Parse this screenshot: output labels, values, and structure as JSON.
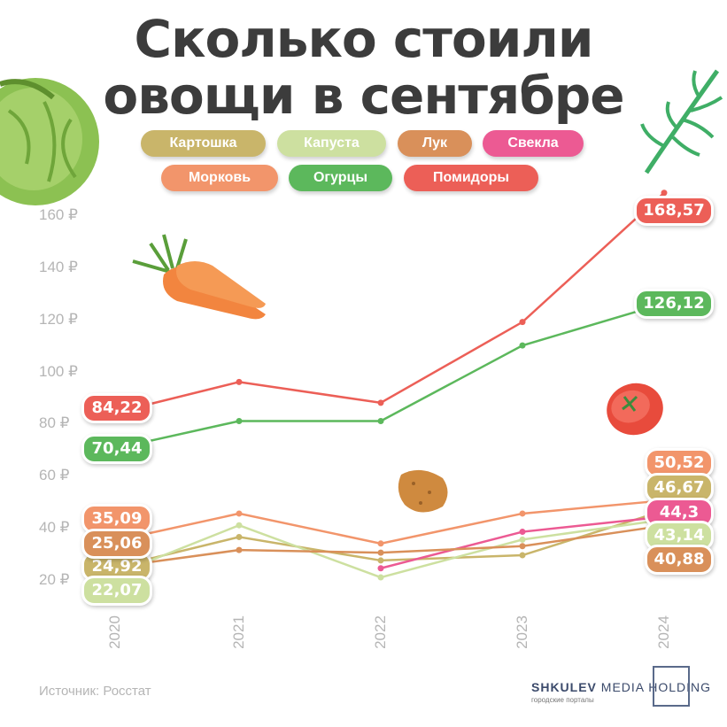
{
  "title_line1": "Сколько стоили",
  "title_line2": "овощи в сентябре",
  "source": "Источник: Росстат",
  "brand": {
    "name_bold": "SHKULEV",
    "name_rest": "MEDIA HOLDING",
    "subtitle": "городские порталы"
  },
  "legend": [
    {
      "label": "Картошка",
      "color": "#c9b56a"
    },
    {
      "label": "Капуста",
      "color": "#cde0a0"
    },
    {
      "label": "Лук",
      "color": "#d9905a"
    },
    {
      "label": "Свекла",
      "color": "#ec5a93"
    },
    {
      "label": "Морковь",
      "color": "#f2956b"
    },
    {
      "label": "Огурцы",
      "color": "#5cb85c"
    },
    {
      "label": "Помидоры",
      "color": "#ec5f57"
    }
  ],
  "chart_data": {
    "type": "line",
    "title": "Сколько стоили овощи в сентябре",
    "x": [
      "2020",
      "2021",
      "2022",
      "2023",
      "2024"
    ],
    "ylim": [
      20,
      160
    ],
    "yticks": [
      "20 ₽",
      "40 ₽",
      "60 ₽",
      "80 ₽",
      "100 ₽",
      "120 ₽",
      "140 ₽",
      "160 ₽"
    ],
    "grid": false,
    "legend_position": "top",
    "series": [
      {
        "name": "Помидоры",
        "color": "#ec5f57",
        "values": [
          84.22,
          96,
          88,
          119,
          168.57
        ],
        "start_label": "84,22",
        "end_label": "168,57"
      },
      {
        "name": "Огурцы",
        "color": "#5cb85c",
        "values": [
          70.44,
          81,
          81,
          110,
          126.12
        ],
        "start_label": "70,44",
        "end_label": "126,12"
      },
      {
        "name": "Морковь",
        "color": "#f2956b",
        "values": [
          35.09,
          45.5,
          34,
          45.5,
          50.52
        ],
        "start_label": "35,09",
        "end_label": "50,52"
      },
      {
        "name": "Картошка",
        "color": "#c9b56a",
        "values": [
          24.92,
          36.5,
          27.5,
          29.5,
          46.67
        ],
        "start_label": "24,92",
        "end_label": "46,67"
      },
      {
        "name": "Свекла",
        "color": "#ec5a93",
        "values": [
          null,
          null,
          24.5,
          38.5,
          44.3
        ],
        "start_label": "",
        "end_label": "44,3"
      },
      {
        "name": "Капуста",
        "color": "#cde0a0",
        "values": [
          22.07,
          41,
          21,
          35.5,
          43.14
        ],
        "start_label": "22,07",
        "end_label": "43,14"
      },
      {
        "name": "Лук",
        "color": "#d9905a",
        "values": [
          25.06,
          31.5,
          30.5,
          33,
          40.88
        ],
        "start_label": "25,06",
        "end_label": "40,88"
      }
    ]
  }
}
